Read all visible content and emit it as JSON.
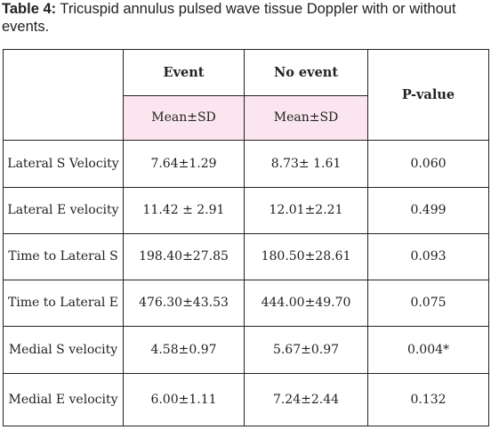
{
  "caption": {
    "label": "Table 4:",
    "text": " Tricuspid annulus pulsed wave tissue Doppler with or without events."
  },
  "table": {
    "headers": {
      "event": "Event",
      "no_event": "No event",
      "p_value": "P-value",
      "event_sub": "Mean±SD",
      "no_event_sub": "Mean±SD"
    },
    "rows": [
      {
        "label": "Lateral S Velocity",
        "event": "7.64±1.29",
        "no_event": "8.73± 1.61",
        "p": "0.060"
      },
      {
        "label": "Lateral E velocity",
        "event": "11.42 ± 2.91",
        "no_event": "12.01±2.21",
        "p": "0.499"
      },
      {
        "label": "Time to Lateral S",
        "event": "198.40±27.85",
        "no_event": "180.50±28.61",
        "p": "0.093"
      },
      {
        "label": "Time to Lateral E",
        "event": "476.30±43.53",
        "no_event": "444.00±49.70",
        "p": "0.075"
      },
      {
        "label": "Medial S velocity",
        "event": "4.58±0.97",
        "no_event": "5.67±0.97",
        "p": "0.004*"
      },
      {
        "label": "Medial E velocity",
        "event": "6.00±1.11",
        "no_event": "7.24±2.44",
        "p": "0.132"
      }
    ]
  }
}
